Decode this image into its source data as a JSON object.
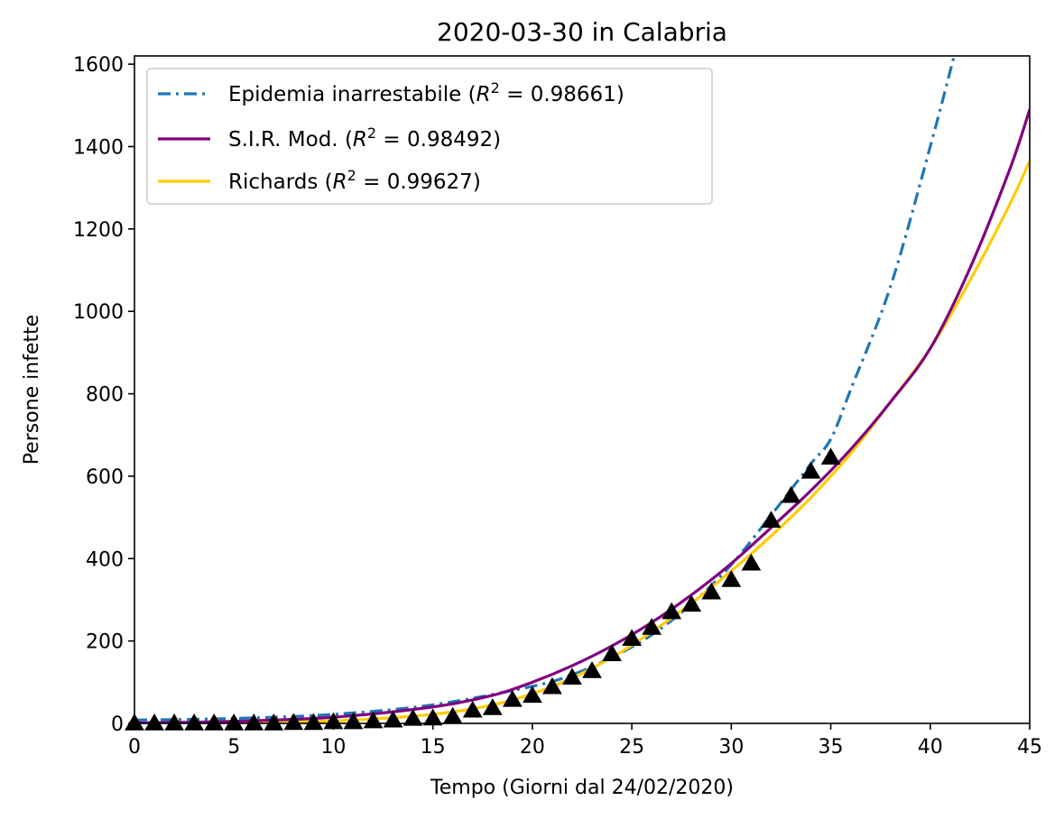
{
  "chart_data": {
    "type": "line",
    "title": "2020-03-30 in Calabria",
    "xlabel": "Tempo (Giorni dal 24/02/2020)",
    "ylabel": "Persone infette",
    "xlim": [
      0,
      45
    ],
    "ylim": [
      0,
      1620
    ],
    "xticks": [
      0,
      5,
      10,
      15,
      20,
      25,
      30,
      35,
      40,
      45
    ],
    "yticks": [
      0,
      200,
      400,
      600,
      800,
      1000,
      1200,
      1400,
      1600
    ],
    "legend_position": "upper-left",
    "series": [
      {
        "name": "Epidemia inarrestabile",
        "r2": "0.98661",
        "style": "dashdot",
        "color": "#1f77b4",
        "x": [
          0,
          5,
          10,
          15,
          20,
          22,
          24,
          26,
          28,
          30,
          32,
          34,
          35,
          36,
          38,
          40,
          41.2
        ],
        "y": [
          8,
          12,
          22,
          45,
          90,
          118,
          160,
          215,
          290,
          385,
          505,
          630,
          690,
          810,
          1060,
          1400,
          1620
        ]
      },
      {
        "name": "S.I.R. Mod.",
        "r2": "0.98492",
        "style": "solid",
        "color": "#800080",
        "x": [
          0,
          5,
          10,
          15,
          18,
          20,
          22,
          24,
          26,
          28,
          30,
          32,
          34,
          36,
          38,
          40,
          42,
          44,
          45
        ],
        "y": [
          1,
          5,
          15,
          40,
          68,
          100,
          140,
          188,
          245,
          312,
          388,
          475,
          565,
          665,
          780,
          910,
          1105,
          1345,
          1490
        ]
      },
      {
        "name": "Richards",
        "r2": "0.99627",
        "style": "solid",
        "color": "#ffcc00",
        "x": [
          0,
          5,
          10,
          15,
          18,
          20,
          22,
          24,
          26,
          28,
          30,
          32,
          34,
          36,
          38,
          40,
          42,
          44,
          45
        ],
        "y": [
          0,
          2,
          6,
          22,
          45,
          72,
          110,
          160,
          222,
          292,
          370,
          455,
          548,
          655,
          780,
          910,
          1075,
          1260,
          1365
        ]
      },
      {
        "name": "",
        "style": "markers",
        "marker": "triangle",
        "color": "#000000",
        "x": [
          0,
          1,
          2,
          3,
          4,
          5,
          6,
          7,
          8,
          9,
          10,
          11,
          12,
          13,
          14,
          15,
          16,
          17,
          18,
          19,
          20,
          21,
          22,
          23,
          24,
          25,
          26,
          27,
          28,
          29,
          30,
          31,
          32,
          33,
          34,
          35
        ],
        "y": [
          0,
          0,
          0,
          0,
          0,
          0,
          0,
          0,
          1,
          1,
          3,
          3,
          5,
          7,
          11,
          12,
          16,
          31,
          37,
          57,
          67,
          88,
          111,
          127,
          168,
          205,
          232,
          270,
          288,
          318,
          348,
          388,
          492,
          552,
          611,
          645
        ]
      }
    ]
  }
}
